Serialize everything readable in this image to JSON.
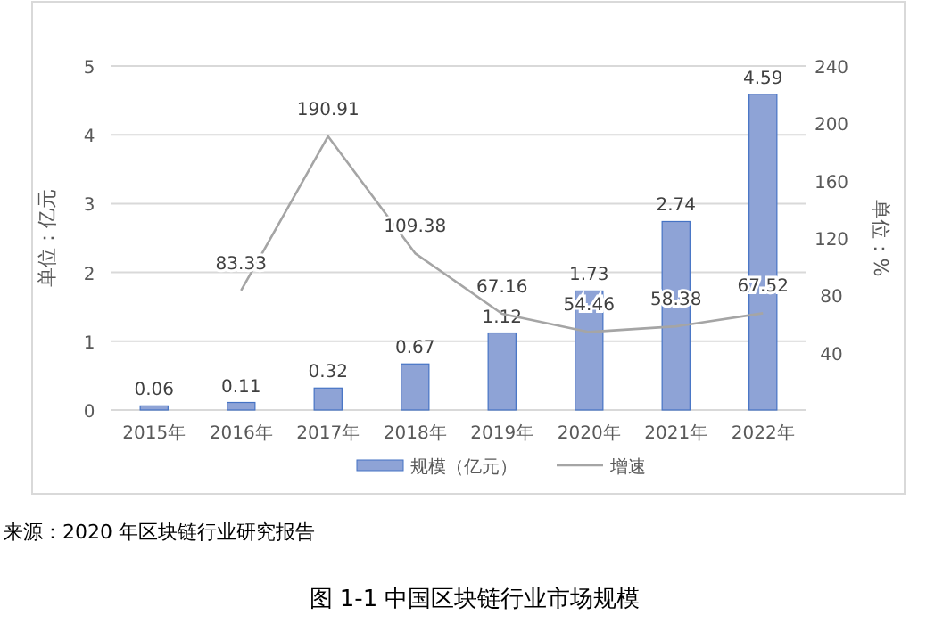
{
  "chart_data": {
    "type": "bar",
    "title": "图 1-1 中国区块链行业市场规模",
    "ylabel": "单位：亿元",
    "y2label": "单位：%",
    "categories": [
      "2015年",
      "2016年",
      "2017年",
      "2018年",
      "2019年",
      "2020年",
      "2021年",
      "2022年"
    ],
    "series": [
      {
        "name": "规模（亿元）",
        "color": "#8ea3d6",
        "values": [
          0.06,
          0.11,
          0.32,
          0.67,
          1.12,
          1.73,
          2.74,
          4.59
        ]
      },
      {
        "name": "增速",
        "type": "line",
        "axis": "y2",
        "color": "#a5a5a5",
        "values": [
          null,
          83.33,
          190.91,
          109.38,
          67.16,
          54.46,
          58.38,
          67.52
        ]
      }
    ],
    "ylim": [
      0,
      5
    ],
    "yticks": [
      0,
      1,
      2,
      3,
      4,
      5
    ],
    "y2lim": [
      0,
      240
    ],
    "y2ticks": [
      40,
      80,
      120,
      160,
      200,
      240
    ],
    "grid": "y",
    "legend": "bottom",
    "data_labels": true,
    "annotations": [
      "来源：2020 年区块链行业研究报告"
    ]
  }
}
